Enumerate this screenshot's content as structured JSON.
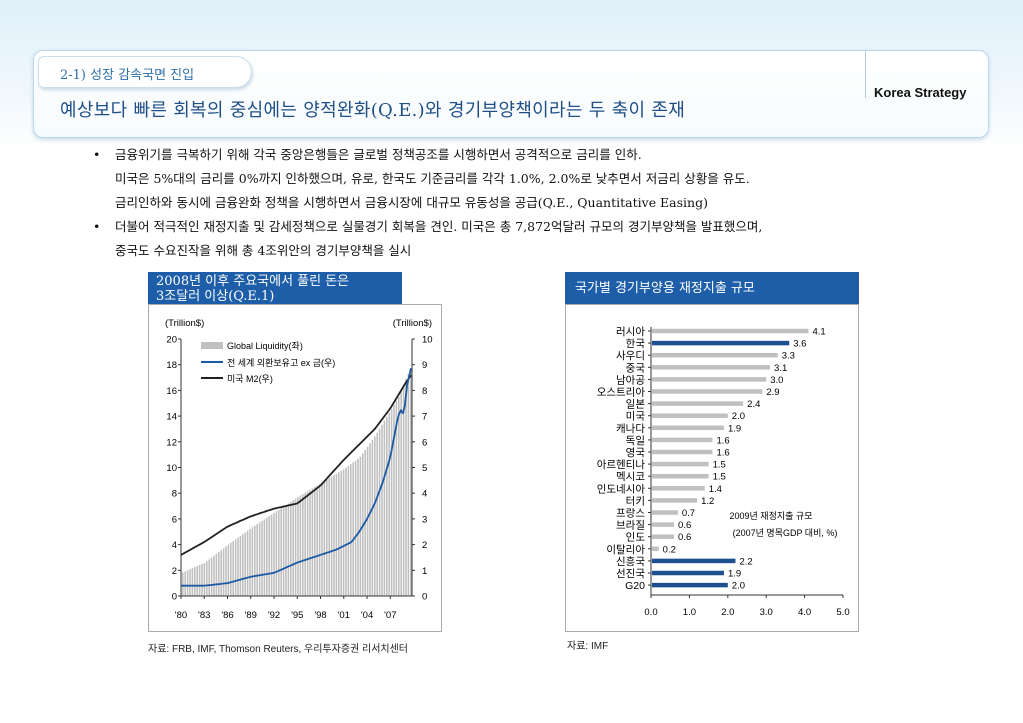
{
  "header": {
    "section_label": "2-1) 성장 감속국면 진입",
    "title": "예상보다 빠른 회복의 중심에는 양적완화(Q.E.)와 경기부양책이라는 두 축이 존재",
    "brand": "Korea Strategy"
  },
  "bullets": [
    {
      "marker": "•",
      "lines": [
        "금융위기를 극복하기 위해 각국 중앙은행들은 글로벌 정책공조를 시행하면서 공격적으로 금리를 인하.",
        "미국은 5%대의 금리를 0%까지 인하했으며, 유로, 한국도 기준금리를 각각 1.0%, 2.0%로 낮추면서 저금리 상황을 유도.",
        "금리인하와 동시에 금융완화 정책을 시행하면서 금융시장에 대규모 유동성을 공급(Q.E., Quantitative Easing)"
      ]
    },
    {
      "marker": "•",
      "lines": [
        "더불어 적극적인 재정지출 및 감세정책으로 실물경기 회복을 견인. 미국은 총 7,872억달러 규모의 경기부양책을 발표했으며,",
        "중국도 수요진작을 위해 총 4조위안의 경기부양책을 실시"
      ]
    }
  ],
  "colors": {
    "accent": "#1e5ea8",
    "bar_gray": "#c0c0c0",
    "bar_blue": "#1e4f8f",
    "line_blue": "#1d5aa6",
    "line_black": "#222222"
  },
  "chart_data": [
    {
      "type": "line",
      "title_lines": [
        "2008년 이후 주요국에서 풀린 돈은",
        "3조달러 이상(Q.E.1)"
      ],
      "left_unit": "(Trillion$)",
      "right_unit": "(Trillion$)",
      "x_ticks": [
        "'80",
        "'83",
        "'86",
        "'89",
        "'92",
        "'95",
        "'98",
        "'01",
        "'04",
        "'07"
      ],
      "x_range": [
        1980,
        2009.8
      ],
      "ylim_left": [
        0,
        20
      ],
      "ylim_right": [
        0,
        10
      ],
      "y_ticks_left": [
        0,
        2,
        4,
        6,
        8,
        10,
        12,
        14,
        16,
        18,
        20
      ],
      "y_ticks_right": [
        0,
        1,
        2,
        3,
        4,
        5,
        6,
        7,
        8,
        9,
        10
      ],
      "series": [
        {
          "name": "Global Liquidity(좌)",
          "kind": "bars",
          "axis": "left",
          "x": [
            1980,
            1983,
            1986,
            1989,
            1992,
            1995,
            1998,
            2001,
            2003,
            2005,
            2007,
            2008,
            2009,
            2009.7
          ],
          "values": [
            1.8,
            2.6,
            4.0,
            5.3,
            6.5,
            7.7,
            8.8,
            9.9,
            10.8,
            12.5,
            14.5,
            15.5,
            17.0,
            17.8
          ]
        },
        {
          "name": "전 세계 외환보유고 ex 금(우)",
          "kind": "line",
          "axis": "right",
          "x": [
            1980,
            1983,
            1986,
            1989,
            1992,
            1995,
            1998,
            2000,
            2002,
            2003,
            2004,
            2005,
            2006,
            2007,
            2008,
            2008.5,
            2008.8,
            2009,
            2009.7
          ],
          "values": [
            0.4,
            0.4,
            0.5,
            0.75,
            0.9,
            1.3,
            1.6,
            1.8,
            2.1,
            2.5,
            3.0,
            3.6,
            4.4,
            5.4,
            7.0,
            7.3,
            6.9,
            8.0,
            8.9
          ]
        },
        {
          "name": "미국 M2(우)",
          "kind": "line",
          "axis": "right",
          "x": [
            1980,
            1983,
            1986,
            1989,
            1992,
            1995,
            1998,
            2001,
            2003,
            2005,
            2007,
            2008,
            2009,
            2009.7
          ],
          "values": [
            1.6,
            2.1,
            2.7,
            3.1,
            3.4,
            3.6,
            4.3,
            5.3,
            5.9,
            6.5,
            7.3,
            7.8,
            8.3,
            8.6
          ]
        }
      ],
      "source": "자료: FRB, IMF, Thomson Reuters, 우리투자증권 리서치센터"
    },
    {
      "type": "bar",
      "orientation": "horizontal",
      "title": "국가별 경기부양용 재정지출 규모",
      "categories": [
        "러시아",
        "한국",
        "사우디",
        "중국",
        "남아공",
        "오스트리아",
        "일본",
        "미국",
        "캐나다",
        "독일",
        "영국",
        "아르헨티나",
        "멕시코",
        "인도네시아",
        "터키",
        "프랑스",
        "브라질",
        "인도",
        "이탈리아",
        "신흥국",
        "선진국",
        "G20"
      ],
      "values": [
        4.1,
        3.6,
        3.3,
        3.1,
        3.0,
        2.9,
        2.4,
        2.0,
        1.9,
        1.6,
        1.6,
        1.5,
        1.5,
        1.4,
        1.2,
        0.7,
        0.6,
        0.6,
        0.2,
        2.2,
        1.9,
        2.0
      ],
      "value_labels": [
        "4.1",
        "3.6",
        "3.3",
        "3.1",
        "3.0",
        "2.9",
        "2.4",
        "2.0",
        "1.9",
        "1.6",
        "1.6",
        "1.5",
        "1.5",
        "1.4",
        "1.2",
        "0.7",
        "0.6",
        "0.6",
        "0.2",
        "2.2",
        "1.9",
        "2.0"
      ],
      "highlight": [
        "한국",
        "신흥국",
        "선진국",
        "G20"
      ],
      "x_ticks": [
        "0.0",
        "1.0",
        "2.0",
        "3.0",
        "4.0",
        "5.0"
      ],
      "xlim": [
        0,
        5
      ],
      "annotation_lines": [
        "2009년 재정지출 규모",
        "(2007년 명목GDP 대비, %)"
      ],
      "source": "자료: IMF"
    }
  ]
}
